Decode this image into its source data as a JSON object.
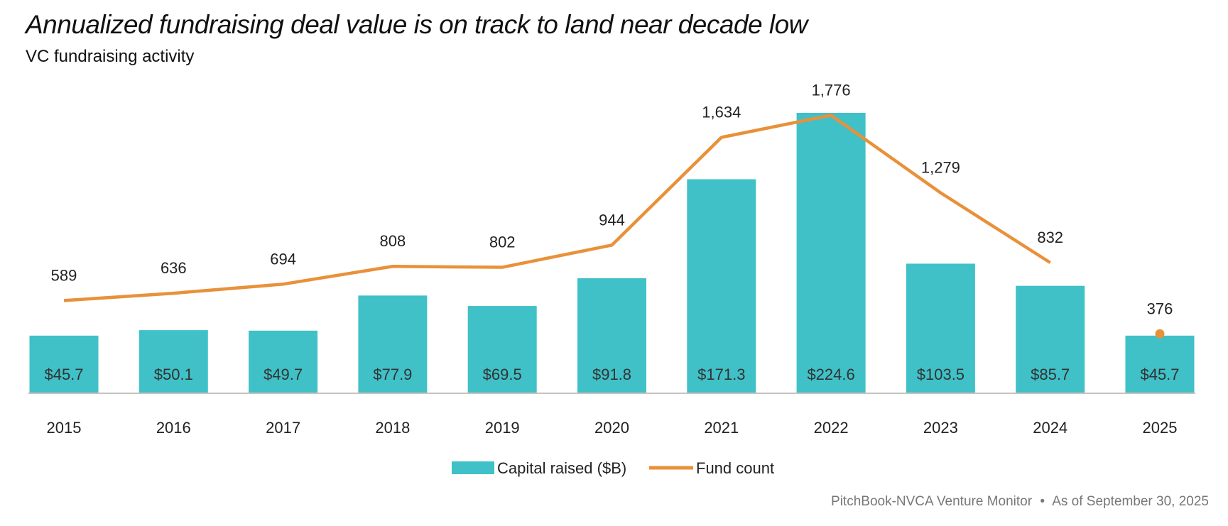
{
  "chart_data": {
    "type": "bar",
    "title": "Annualized fundraising deal value is on track to land near decade low",
    "subtitle": "VC fundraising activity",
    "categories": [
      "2015",
      "2016",
      "2017",
      "2018",
      "2019",
      "2020",
      "2021",
      "2022",
      "2023",
      "2024",
      "2025"
    ],
    "series": [
      {
        "name": "Capital raised ($B)",
        "type": "bar",
        "color": "#3fc1c7",
        "values": [
          45.7,
          50.1,
          49.7,
          77.9,
          69.5,
          91.8,
          171.3,
          224.6,
          103.5,
          85.7,
          45.7
        ],
        "labels": [
          "$45.7",
          "$50.1",
          "$49.7",
          "$77.9",
          "$69.5",
          "$91.8",
          "$171.3",
          "$224.6",
          "$103.5",
          "$85.7",
          "$45.7"
        ]
      },
      {
        "name": "Fund count",
        "type": "line",
        "color": "#e8913a",
        "values": [
          589,
          636,
          694,
          808,
          802,
          944,
          1634,
          1776,
          1279,
          832,
          376
        ],
        "labels": [
          "589",
          "636",
          "694",
          "808",
          "802",
          "944",
          "1,634",
          "1,776",
          "1,279",
          "832",
          "376"
        ],
        "note": "2025 shown as a separate point"
      }
    ],
    "legend": "bottom-center",
    "grid": false,
    "source": "PitchBook-NVCA Venture Monitor",
    "as_of": "As of September 30, 2025",
    "separator": "•"
  }
}
